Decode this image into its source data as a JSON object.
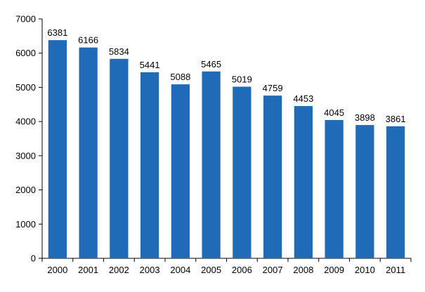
{
  "chart_data": {
    "type": "bar",
    "categories": [
      "2000",
      "2001",
      "2002",
      "2003",
      "2004",
      "2005",
      "2006",
      "2007",
      "2008",
      "2009",
      "2010",
      "2011"
    ],
    "values": [
      6381,
      6166,
      5834,
      5441,
      5088,
      5465,
      5019,
      4759,
      4453,
      4045,
      3898,
      3861
    ],
    "data_labels": [
      "6381",
      "6166",
      "5834",
      "5441",
      "5088",
      "5465",
      "5019",
      "4759",
      "4453",
      "4045",
      "3898",
      "3861"
    ],
    "title": "",
    "xlabel": "",
    "ylabel": "",
    "ylim": [
      0,
      7000
    ],
    "yticks": [
      0,
      1000,
      2000,
      3000,
      4000,
      5000,
      6000,
      7000
    ],
    "ytick_labels": [
      "0",
      "1000",
      "2000",
      "3000",
      "4000",
      "5000",
      "6000",
      "7000"
    ],
    "grid": false,
    "legend": "none",
    "colors": {
      "bar": "#1f6bb8",
      "axis": "#000000",
      "text": "#000000"
    }
  }
}
